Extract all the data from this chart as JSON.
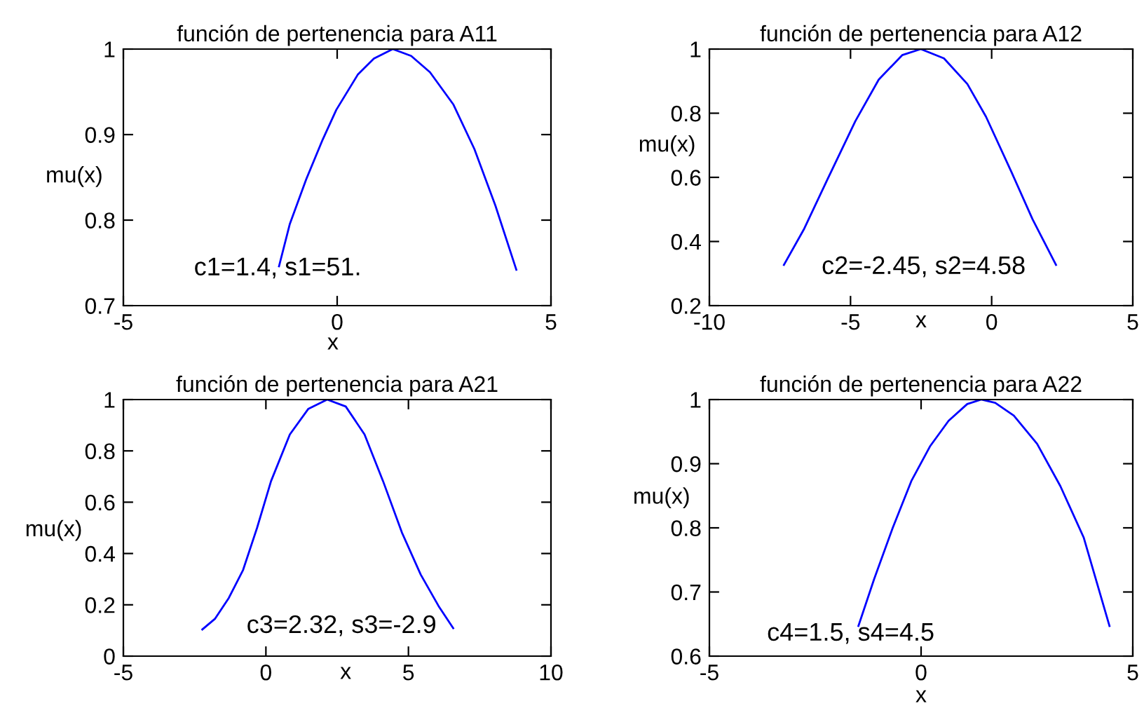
{
  "chart_data": [
    {
      "type": "line",
      "title": "función de pertenencia para A11",
      "xlabel": "x",
      "ylabel": "mu(x)",
      "x": [
        -1.36,
        -1.11,
        -0.73,
        -0.34,
        -0.02,
        0.48,
        0.86,
        1.3,
        1.73,
        2.17,
        2.72,
        3.21,
        3.7,
        4.19
      ],
      "values": [
        0.746,
        0.795,
        0.847,
        0.894,
        0.929,
        0.97,
        0.989,
        1.0,
        0.992,
        0.973,
        0.935,
        0.883,
        0.817,
        0.742
      ],
      "color": "#0000ff",
      "xlim": [
        -5,
        5
      ],
      "ylim": [
        0.7,
        1
      ],
      "xticks": [
        -5,
        0,
        5
      ],
      "yticks": [
        0.7,
        0.8,
        0.9,
        1
      ],
      "annotations": [
        "c1=1.4, s1=51."
      ]
    },
    {
      "type": "line",
      "title": "función de pertenencia para A12",
      "xlabel": "x",
      "ylabel": "mu(x)",
      "x": [
        -7.36,
        -6.64,
        -5.82,
        -4.83,
        -4.0,
        -3.17,
        -2.51,
        -1.69,
        -0.86,
        -0.2,
        0.71,
        1.45,
        2.28
      ],
      "values": [
        0.327,
        0.44,
        0.593,
        0.775,
        0.905,
        0.981,
        1.0,
        0.971,
        0.891,
        0.789,
        0.615,
        0.469,
        0.327
      ],
      "color": "#0000ff",
      "xlim": [
        -10,
        5
      ],
      "ylim": [
        0.2,
        1
      ],
      "xticks": [
        -10,
        -5,
        0,
        5
      ],
      "yticks": [
        0.2,
        0.4,
        0.6,
        0.8,
        1
      ],
      "annotations": [
        "c2=-2.45, s2=4.58"
      ]
    },
    {
      "type": "line",
      "title": "función de pertenencia para A21",
      "xlabel": "x",
      "ylabel": "mu(x)",
      "x": [
        -2.23,
        -1.79,
        -1.3,
        -0.8,
        -0.31,
        0.18,
        0.84,
        1.49,
        2.15,
        2.8,
        3.46,
        4.11,
        4.77,
        5.43,
        6.08,
        6.57
      ],
      "values": [
        0.104,
        0.145,
        0.227,
        0.336,
        0.5,
        0.682,
        0.864,
        0.964,
        1.0,
        0.973,
        0.864,
        0.682,
        0.482,
        0.318,
        0.191,
        0.109
      ],
      "color": "#0000ff",
      "xlim": [
        -5,
        10
      ],
      "ylim": [
        0,
        1
      ],
      "xticks": [
        -5,
        0,
        5,
        10
      ],
      "yticks": [
        0,
        0.2,
        0.4,
        0.6,
        0.8,
        1
      ],
      "annotations": [
        "c3=2.32, s3=-2.9"
      ]
    },
    {
      "type": "line",
      "title": "función de pertenencia para A22",
      "xlabel": "x",
      "ylabel": "mu(x)",
      "x": [
        -1.48,
        -1.11,
        -0.67,
        -0.23,
        0.21,
        0.65,
        1.09,
        1.42,
        1.75,
        2.19,
        2.74,
        3.29,
        3.84,
        4.45
      ],
      "values": [
        0.647,
        0.72,
        0.8,
        0.873,
        0.927,
        0.967,
        0.993,
        1.0,
        0.995,
        0.975,
        0.931,
        0.865,
        0.785,
        0.647
      ],
      "color": "#0000ff",
      "xlim": [
        -5,
        5
      ],
      "ylim": [
        0.6,
        1
      ],
      "xticks": [
        -5,
        0,
        5
      ],
      "yticks": [
        0.6,
        0.7,
        0.8,
        0.9,
        1
      ],
      "annotations": [
        "c4=1.5, s4=4.5"
      ]
    }
  ]
}
